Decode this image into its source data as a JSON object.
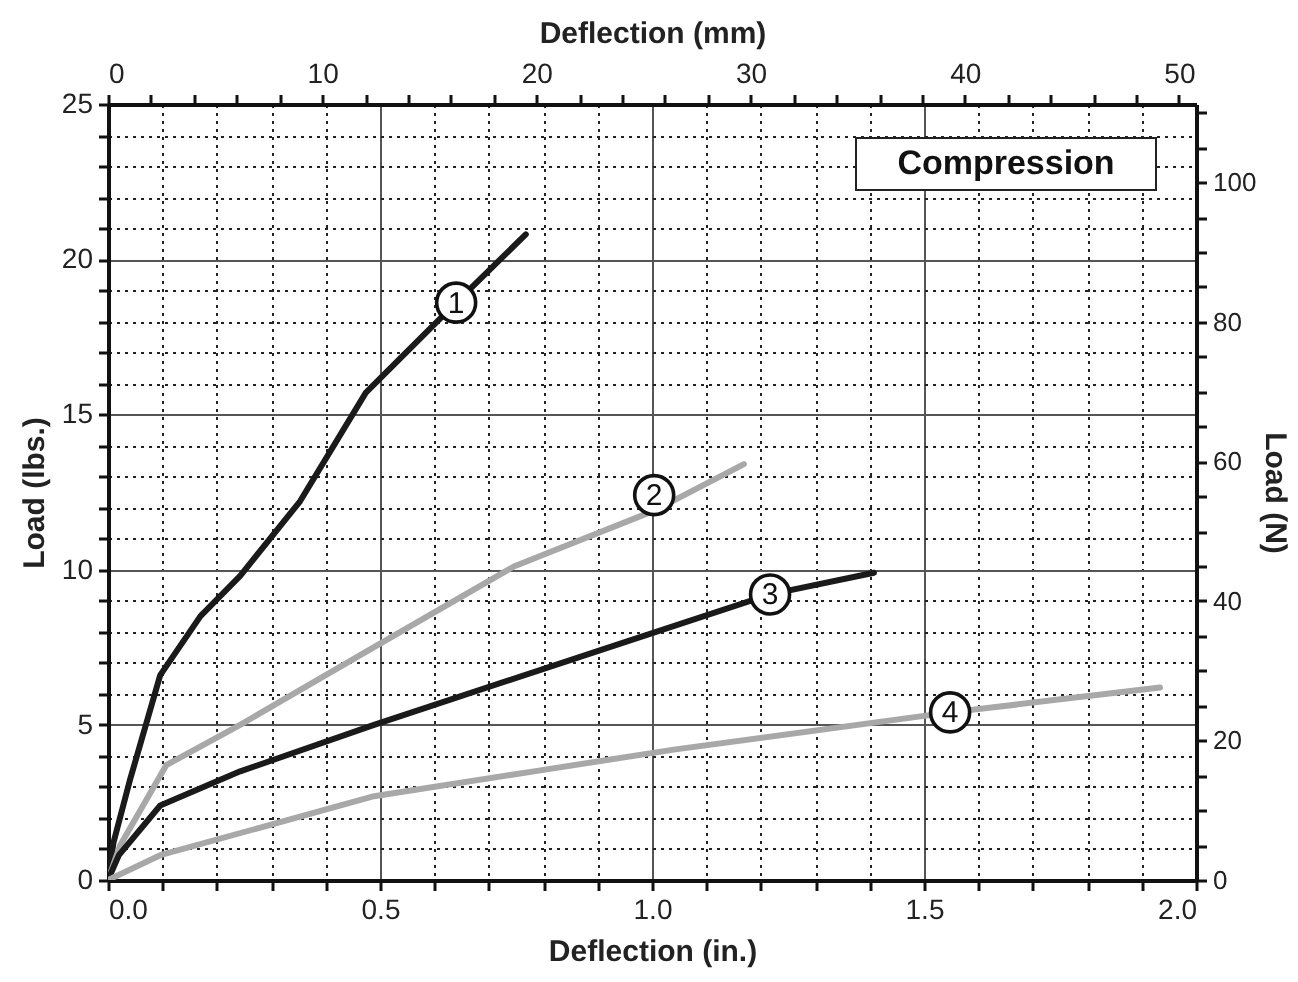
{
  "chart_data": {
    "type": "line",
    "xlabel": "Deflection (in.)",
    "ylabel": "Load (lbs.)",
    "x2label": "Deflection (mm)",
    "y2label": "Load (N)",
    "xlim": [
      0,
      2.0
    ],
    "ylim": [
      0,
      25
    ],
    "x2lim": [
      0,
      50.8
    ],
    "y2lim": [
      0,
      111.2
    ],
    "xticks": [
      {
        "value": 0,
        "label": "0.0"
      },
      {
        "value": 0.1,
        "label": null
      },
      {
        "value": 0.2,
        "label": null
      },
      {
        "value": 0.3,
        "label": null
      },
      {
        "value": 0.4,
        "label": null
      },
      {
        "value": 0.5,
        "label": "0.5"
      },
      {
        "value": 0.6,
        "label": null
      },
      {
        "value": 0.7,
        "label": null
      },
      {
        "value": 0.8,
        "label": null
      },
      {
        "value": 0.9,
        "label": null
      },
      {
        "value": 1.0,
        "label": "1.0"
      },
      {
        "value": 1.1,
        "label": null
      },
      {
        "value": 1.2,
        "label": null
      },
      {
        "value": 1.3,
        "label": null
      },
      {
        "value": 1.4,
        "label": null
      },
      {
        "value": 1.5,
        "label": "1.5"
      },
      {
        "value": 1.6,
        "label": null
      },
      {
        "value": 1.7,
        "label": null
      },
      {
        "value": 1.8,
        "label": null
      },
      {
        "value": 1.9,
        "label": null
      },
      {
        "value": 2.0,
        "label": "2.0"
      }
    ],
    "yticks": [
      0,
      {
        "value": 1,
        "label": null
      },
      {
        "value": 2,
        "label": null
      },
      {
        "value": 3,
        "label": null
      },
      {
        "value": 4,
        "label": null
      },
      5,
      {
        "value": 6,
        "label": null
      },
      {
        "value": 7,
        "label": null
      },
      {
        "value": 8,
        "label": null
      },
      {
        "value": 9,
        "label": null
      },
      10,
      {
        "value": 11,
        "label": null
      },
      {
        "value": 12,
        "label": null
      },
      {
        "value": 13,
        "label": null
      },
      {
        "value": 14,
        "label": null
      },
      15,
      {
        "value": 16,
        "label": null
      },
      {
        "value": 17,
        "label": null
      },
      {
        "value": 18,
        "label": null
      },
      {
        "value": 19,
        "label": null
      },
      20,
      {
        "value": 21,
        "label": null
      },
      {
        "value": 22,
        "label": null
      },
      {
        "value": 23,
        "label": null
      },
      {
        "value": 24,
        "label": null
      },
      25
    ],
    "x2ticks": [
      0,
      {
        "value": 2,
        "label": null
      },
      {
        "value": 4,
        "label": null
      },
      {
        "value": 6,
        "label": null
      },
      {
        "value": 8,
        "label": null
      },
      10,
      {
        "value": 12,
        "label": null
      },
      {
        "value": 14,
        "label": null
      },
      {
        "value": 16,
        "label": null
      },
      {
        "value": 18,
        "label": null
      },
      20,
      {
        "value": 22,
        "label": null
      },
      {
        "value": 24,
        "label": null
      },
      {
        "value": 26,
        "label": null
      },
      {
        "value": 28,
        "label": null
      },
      30,
      {
        "value": 32,
        "label": null
      },
      {
        "value": 34,
        "label": null
      },
      {
        "value": 36,
        "label": null
      },
      {
        "value": 38,
        "label": null
      },
      40,
      {
        "value": 42,
        "label": null
      },
      {
        "value": 44,
        "label": null
      },
      {
        "value": 46,
        "label": null
      },
      {
        "value": 48,
        "label": null
      },
      50
    ],
    "y2ticks": [
      0,
      {
        "value": 5,
        "label": null
      },
      {
        "value": 10,
        "label": null
      },
      {
        "value": 15,
        "label": null
      },
      20,
      {
        "value": 25,
        "label": null
      },
      {
        "value": 30,
        "label": null
      },
      {
        "value": 35,
        "label": null
      },
      40,
      {
        "value": 45,
        "label": null
      },
      {
        "value": 50,
        "label": null
      },
      {
        "value": 55,
        "label": null
      },
      60,
      {
        "value": 65,
        "label": null
      },
      {
        "value": 70,
        "label": null
      },
      {
        "value": 75,
        "label": null
      },
      80,
      {
        "value": 85,
        "label": null
      },
      {
        "value": 90,
        "label": null
      },
      {
        "value": 95,
        "label": null
      },
      100,
      {
        "value": 105,
        "label": null
      },
      {
        "value": 110,
        "label": null
      }
    ],
    "grid": true,
    "marker": "none",
    "line_style": "solid",
    "series": [
      {
        "color": "#1a1a1a",
        "x": [
          0,
          0.01,
          0.04,
          0.096,
          0.17,
          0.243,
          0.353,
          0.474,
          0.64,
          0.768
        ],
        "values": [
          0,
          1.2,
          3.2,
          6.6,
          8.5,
          9.8,
          12.2,
          15.7,
          18.6,
          20.8
        ]
      },
      {
        "color": "#a8a8a8",
        "x": [
          0,
          0.022,
          0.107,
          0.243,
          0.489,
          0.746,
          1.004,
          1.169
        ],
        "values": [
          0,
          1.1,
          3.7,
          5.0,
          7.5,
          10.1,
          11.9,
          13.4
        ]
      },
      {
        "color": "#1a1a1a",
        "x": [
          0,
          0.02,
          0.096,
          0.243,
          0.489,
          0.904,
          1.217,
          1.408
        ],
        "values": [
          0,
          0.8,
          2.4,
          3.5,
          5.0,
          7.4,
          9.2,
          9.9
        ]
      },
      {
        "color": "#a8a8a8",
        "x": [
          0,
          0.096,
          0.489,
          0.783,
          1.04,
          1.548,
          1.934
        ],
        "values": [
          0,
          0.8,
          2.7,
          3.5,
          4.2,
          5.4,
          6.2
        ]
      }
    ],
    "annotations": [
      {
        "text": "1",
        "x": 0.64,
        "y": 18.6
      },
      {
        "text": "2",
        "x": 1.004,
        "y": 12.4
      },
      {
        "text": "3",
        "x": 1.217,
        "y": 9.2
      },
      {
        "text": "4",
        "x": 1.548,
        "y": 5.4
      },
      "Compression"
    ]
  }
}
